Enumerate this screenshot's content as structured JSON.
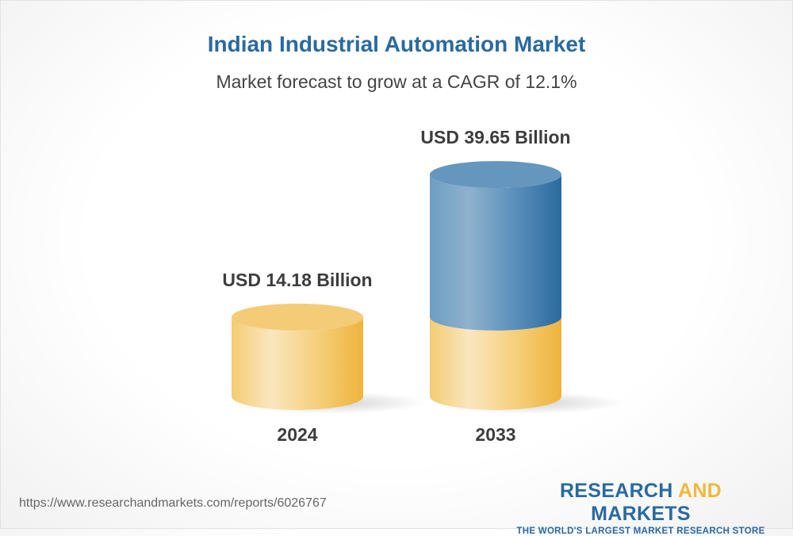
{
  "title": "Indian Industrial Automation Market",
  "subtitle": "Market forecast to grow at a CAGR of 12.1%",
  "chart_data": {
    "type": "bar",
    "style": "3d-cylinder",
    "categories": [
      "2024",
      "2033"
    ],
    "values": [
      14.18,
      39.65
    ],
    "data_labels": [
      "USD 14.18 Billion",
      "USD 39.65 Billion"
    ],
    "unit": "USD Billion",
    "cagr_percent": 12.1,
    "colors": {
      "base": "#f2c462",
      "growth": "#4d86b5"
    }
  },
  "footer": {
    "url": "https://www.researchandmarkets.com/reports/6026767",
    "logo_word1": "RESEARCH",
    "logo_word2": "AND",
    "logo_word3": "MARKETS",
    "logo_tagline": "THE WORLD'S LARGEST MARKET RESEARCH STORE"
  }
}
